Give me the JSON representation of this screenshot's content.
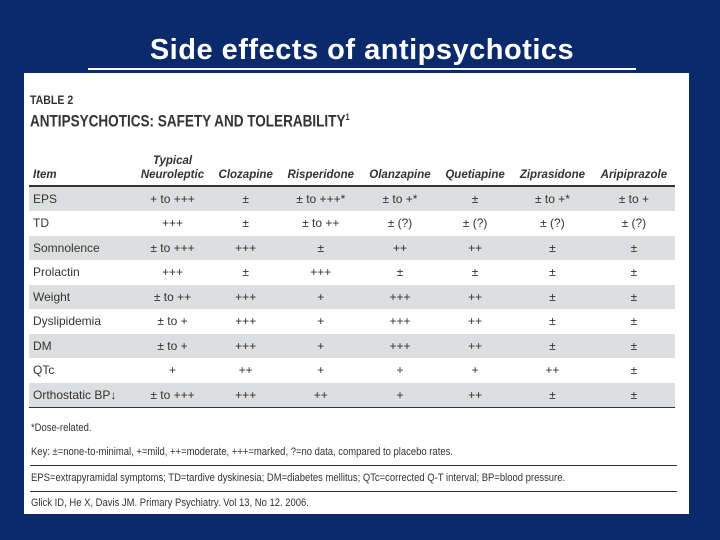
{
  "slide": {
    "title": "Side effects of antipsychotics"
  },
  "table": {
    "label": "TABLE 2",
    "title": "ANTIPSYCHOTICS: SAFETY AND TOLERABILITY",
    "title_sup": "1",
    "headers": [
      "Item",
      "Typical Neuroleptic",
      "Clozapine",
      "Risperidone",
      "Olanzapine",
      "Quetiapine",
      "Ziprasidone",
      "Aripiprazole"
    ],
    "header_typical_line1": "Typical",
    "header_typical_line2": "Neuroleptic",
    "rows": [
      [
        "EPS",
        "+ to +++",
        "±",
        "± to +++*",
        "± to +*",
        "±",
        "± to +*",
        "± to +"
      ],
      [
        "TD",
        "+++",
        "±",
        "± to ++",
        "± (?)",
        "± (?)",
        "± (?)",
        "± (?)"
      ],
      [
        "Somnolence",
        "± to +++",
        "+++",
        "±",
        "++",
        "++",
        "±",
        "±"
      ],
      [
        "Prolactin",
        "+++",
        "±",
        "+++",
        "±",
        "±",
        "±",
        "±"
      ],
      [
        "Weight",
        "± to ++",
        "+++",
        "+",
        "+++",
        "++",
        "±",
        "±"
      ],
      [
        "Dyslipidemia",
        "± to +",
        "+++",
        "+",
        "+++",
        "++",
        "±",
        "±"
      ],
      [
        "DM",
        "± to +",
        "+++",
        "+",
        "+++",
        "++",
        "±",
        "±"
      ],
      [
        "QTc",
        "+",
        "++",
        "+",
        "+",
        "+",
        "++",
        "±"
      ],
      [
        "Orthostatic BP↓",
        "± to +++",
        "+++",
        "++",
        "+",
        "++",
        "±",
        "±"
      ]
    ],
    "footnotes": {
      "dose": "*Dose-related.",
      "key": "Key: ±=none-to-minimal, +=mild, ++=moderate, +++=marked, ?=no data, compared to placebo rates.",
      "abbrev": "EPS=extrapyramidal symptoms; TD=tardive dyskinesia; DM=diabetes mellitus; QTc=corrected Q-T interval; BP=blood pressure.",
      "citation": "Glick ID, He X, Davis JM. Primary Psychiatry. Vol 13, No 12. 2006."
    }
  }
}
